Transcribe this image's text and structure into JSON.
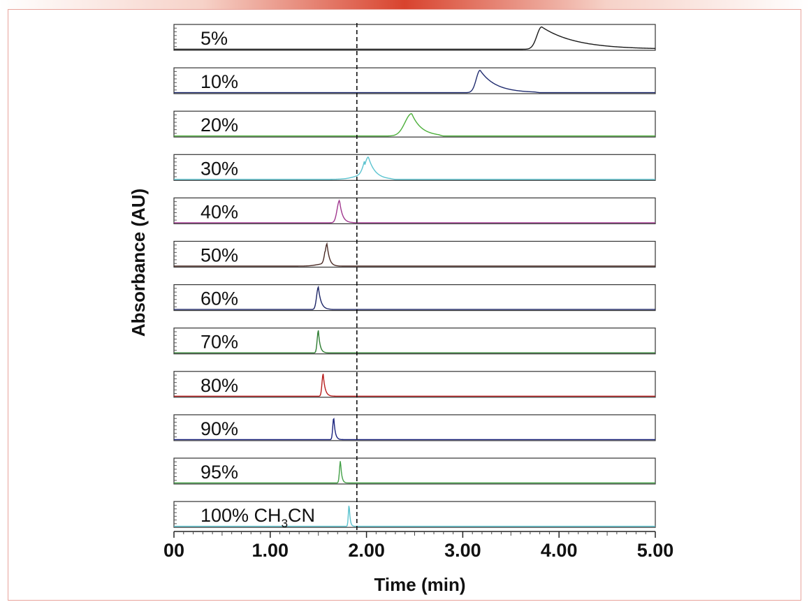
{
  "chart_data": {
    "type": "line",
    "title": "",
    "xlabel": "Time (min)",
    "ylabel": "Absorbance (AU)",
    "xlim": [
      0,
      5
    ],
    "x_ticks": [
      0,
      1,
      2,
      3,
      4,
      5
    ],
    "x_tick_labels": [
      "00",
      "1.00",
      "2.00",
      "3.00",
      "4.00",
      "5.00"
    ],
    "reference_line_x": 1.9,
    "series": [
      {
        "name": "5%",
        "color": "#1a1a1a",
        "peak_time": 3.82,
        "rise": 0.05,
        "tail": 0.35,
        "tail_end": 5.0,
        "pre_width": 0.0,
        "pre_height": 0.0
      },
      {
        "name": "10%",
        "color": "#1f2b6e",
        "peak_time": 3.18,
        "rise": 0.04,
        "tail": 0.16,
        "tail_end": 3.75,
        "pre_width": 0.0,
        "pre_height": 0.0
      },
      {
        "name": "20%",
        "color": "#4caf3a",
        "peak_time": 2.47,
        "rise": 0.07,
        "tail": 0.1,
        "tail_end": 2.75,
        "pre_width": 0.0,
        "pre_height": 0.0
      },
      {
        "name": "30%",
        "color": "#5bc3cf",
        "peak_time": 2.02,
        "rise": 0.04,
        "tail": 0.07,
        "tail_end": 2.25,
        "pre_width": 0.12,
        "pre_height": 0.25
      },
      {
        "name": "40%",
        "color": "#a0378e",
        "peak_time": 1.72,
        "rise": 0.025,
        "tail": 0.03,
        "tail_end": 1.85,
        "pre_width": 0.0,
        "pre_height": 0.0
      },
      {
        "name": "50%",
        "color": "#4a2a24",
        "peak_time": 1.59,
        "rise": 0.02,
        "tail": 0.025,
        "tail_end": 1.7,
        "pre_width": 0.09,
        "pre_height": 0.12
      },
      {
        "name": "60%",
        "color": "#1c2566",
        "peak_time": 1.5,
        "rise": 0.018,
        "tail": 0.028,
        "tail_end": 1.62,
        "pre_width": 0.0,
        "pre_height": 0.0
      },
      {
        "name": "70%",
        "color": "#2e7d32",
        "peak_time": 1.5,
        "rise": 0.012,
        "tail": 0.018,
        "tail_end": 1.58,
        "pre_width": 0.0,
        "pre_height": 0.0
      },
      {
        "name": "80%",
        "color": "#b71c1c",
        "peak_time": 1.55,
        "rise": 0.012,
        "tail": 0.02,
        "tail_end": 1.65,
        "pre_width": 0.0,
        "pre_height": 0.0
      },
      {
        "name": "90%",
        "color": "#1a237e",
        "peak_time": 1.66,
        "rise": 0.01,
        "tail": 0.015,
        "tail_end": 1.72,
        "pre_width": 0.0,
        "pre_height": 0.0
      },
      {
        "name": "95%",
        "color": "#43a047",
        "peak_time": 1.73,
        "rise": 0.01,
        "tail": 0.013,
        "tail_end": 1.78,
        "pre_width": 0.0,
        "pre_height": 0.0
      },
      {
        "name": "100% CH3CN",
        "label_parts": [
          "100% CH",
          "3",
          "CN"
        ],
        "color": "#5bc3cf",
        "peak_time": 1.82,
        "rise": 0.008,
        "tail": 0.01,
        "tail_end": 1.86,
        "pre_width": 0.0,
        "pre_height": 0.0
      }
    ]
  }
}
